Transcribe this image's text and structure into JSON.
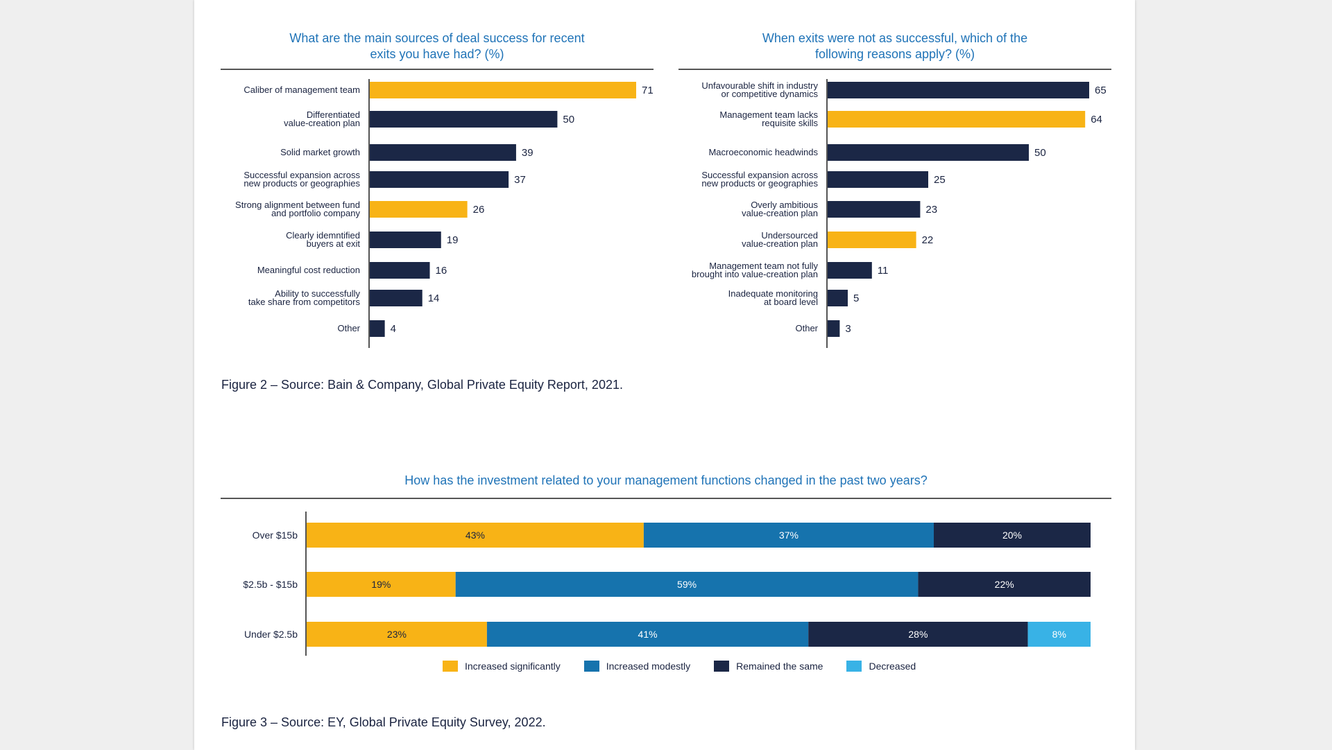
{
  "colors": {
    "highlight": "#f8b316",
    "dark": "#1b2746",
    "blue": "#1673ad",
    "light_blue": "#38b2e6"
  },
  "figure2": {
    "caption": "Figure 2 – Source: Bain & Company, Global Private Equity Report, 2021."
  },
  "figure3": {
    "caption": "Figure 3 – Source: EY, Global Private Equity Survey, 2022."
  },
  "chart_data": [
    {
      "type": "bar",
      "orientation": "horizontal",
      "title_lines": [
        "What are the main sources of deal success for recent",
        "exits you have had? (%)"
      ],
      "categories": [
        [
          "Caliber of management team"
        ],
        [
          "Differentiated",
          "value-creation plan"
        ],
        [
          "Solid market growth"
        ],
        [
          "Successful expansion across",
          "new products or geographies"
        ],
        [
          "Strong alignment between fund",
          "and portfolio company"
        ],
        [
          "Clearly idemntified",
          "buyers at exit"
        ],
        [
          "Meaningful cost reduction"
        ],
        [
          "Ability to successfully",
          "take share from competitors"
        ],
        [
          "Other"
        ]
      ],
      "values": [
        71,
        50,
        39,
        37,
        26,
        19,
        16,
        14,
        4
      ],
      "highlighted": [
        true,
        false,
        false,
        false,
        true,
        false,
        false,
        false,
        false
      ],
      "xlim": [
        0,
        71
      ]
    },
    {
      "type": "bar",
      "orientation": "horizontal",
      "title_lines": [
        "When exits were not as successful, which of the",
        "following reasons apply? (%)"
      ],
      "categories": [
        [
          "Unfavourable shift in industry",
          "or competitive dynamics"
        ],
        [
          "Management team lacks",
          "requisite skills"
        ],
        [
          "Macroeconomic headwinds"
        ],
        [
          "Successful expansion across",
          "new products or geographies"
        ],
        [
          "Overly ambitious",
          "value-creation plan"
        ],
        [
          "Undersourced",
          "value-creation plan"
        ],
        [
          "Management team not fully",
          "brought into value-creation plan"
        ],
        [
          "Inadequate monitoring",
          "at board level"
        ],
        [
          "Other"
        ]
      ],
      "values": [
        65,
        64,
        50,
        25,
        23,
        22,
        11,
        5,
        3
      ],
      "highlighted": [
        false,
        true,
        false,
        false,
        false,
        true,
        false,
        false,
        false
      ],
      "xlim": [
        0,
        65
      ]
    },
    {
      "type": "bar",
      "orientation": "horizontal",
      "stacked": true,
      "title": "How has the investment related to your management functions changed in the past two years?",
      "categories": [
        "Over $15b",
        "$2.5b - $15b",
        "Under $2.5b"
      ],
      "series": [
        {
          "name": "Increased significantly",
          "values": [
            43,
            19,
            23
          ],
          "labels": [
            "43%",
            "19%",
            "23%"
          ]
        },
        {
          "name": "Increased modestly",
          "values": [
            37,
            59,
            41
          ],
          "labels": [
            "37%",
            "59%",
            "41%"
          ]
        },
        {
          "name": "Remained the same",
          "values": [
            20,
            22,
            28
          ],
          "labels": [
            "20%",
            "22%",
            "28%"
          ]
        },
        {
          "name": "Decreased",
          "values": [
            0,
            0,
            8
          ],
          "labels": [
            "",
            "",
            "8%"
          ]
        }
      ],
      "xlim": [
        0,
        100
      ],
      "legend": "bottom"
    }
  ]
}
